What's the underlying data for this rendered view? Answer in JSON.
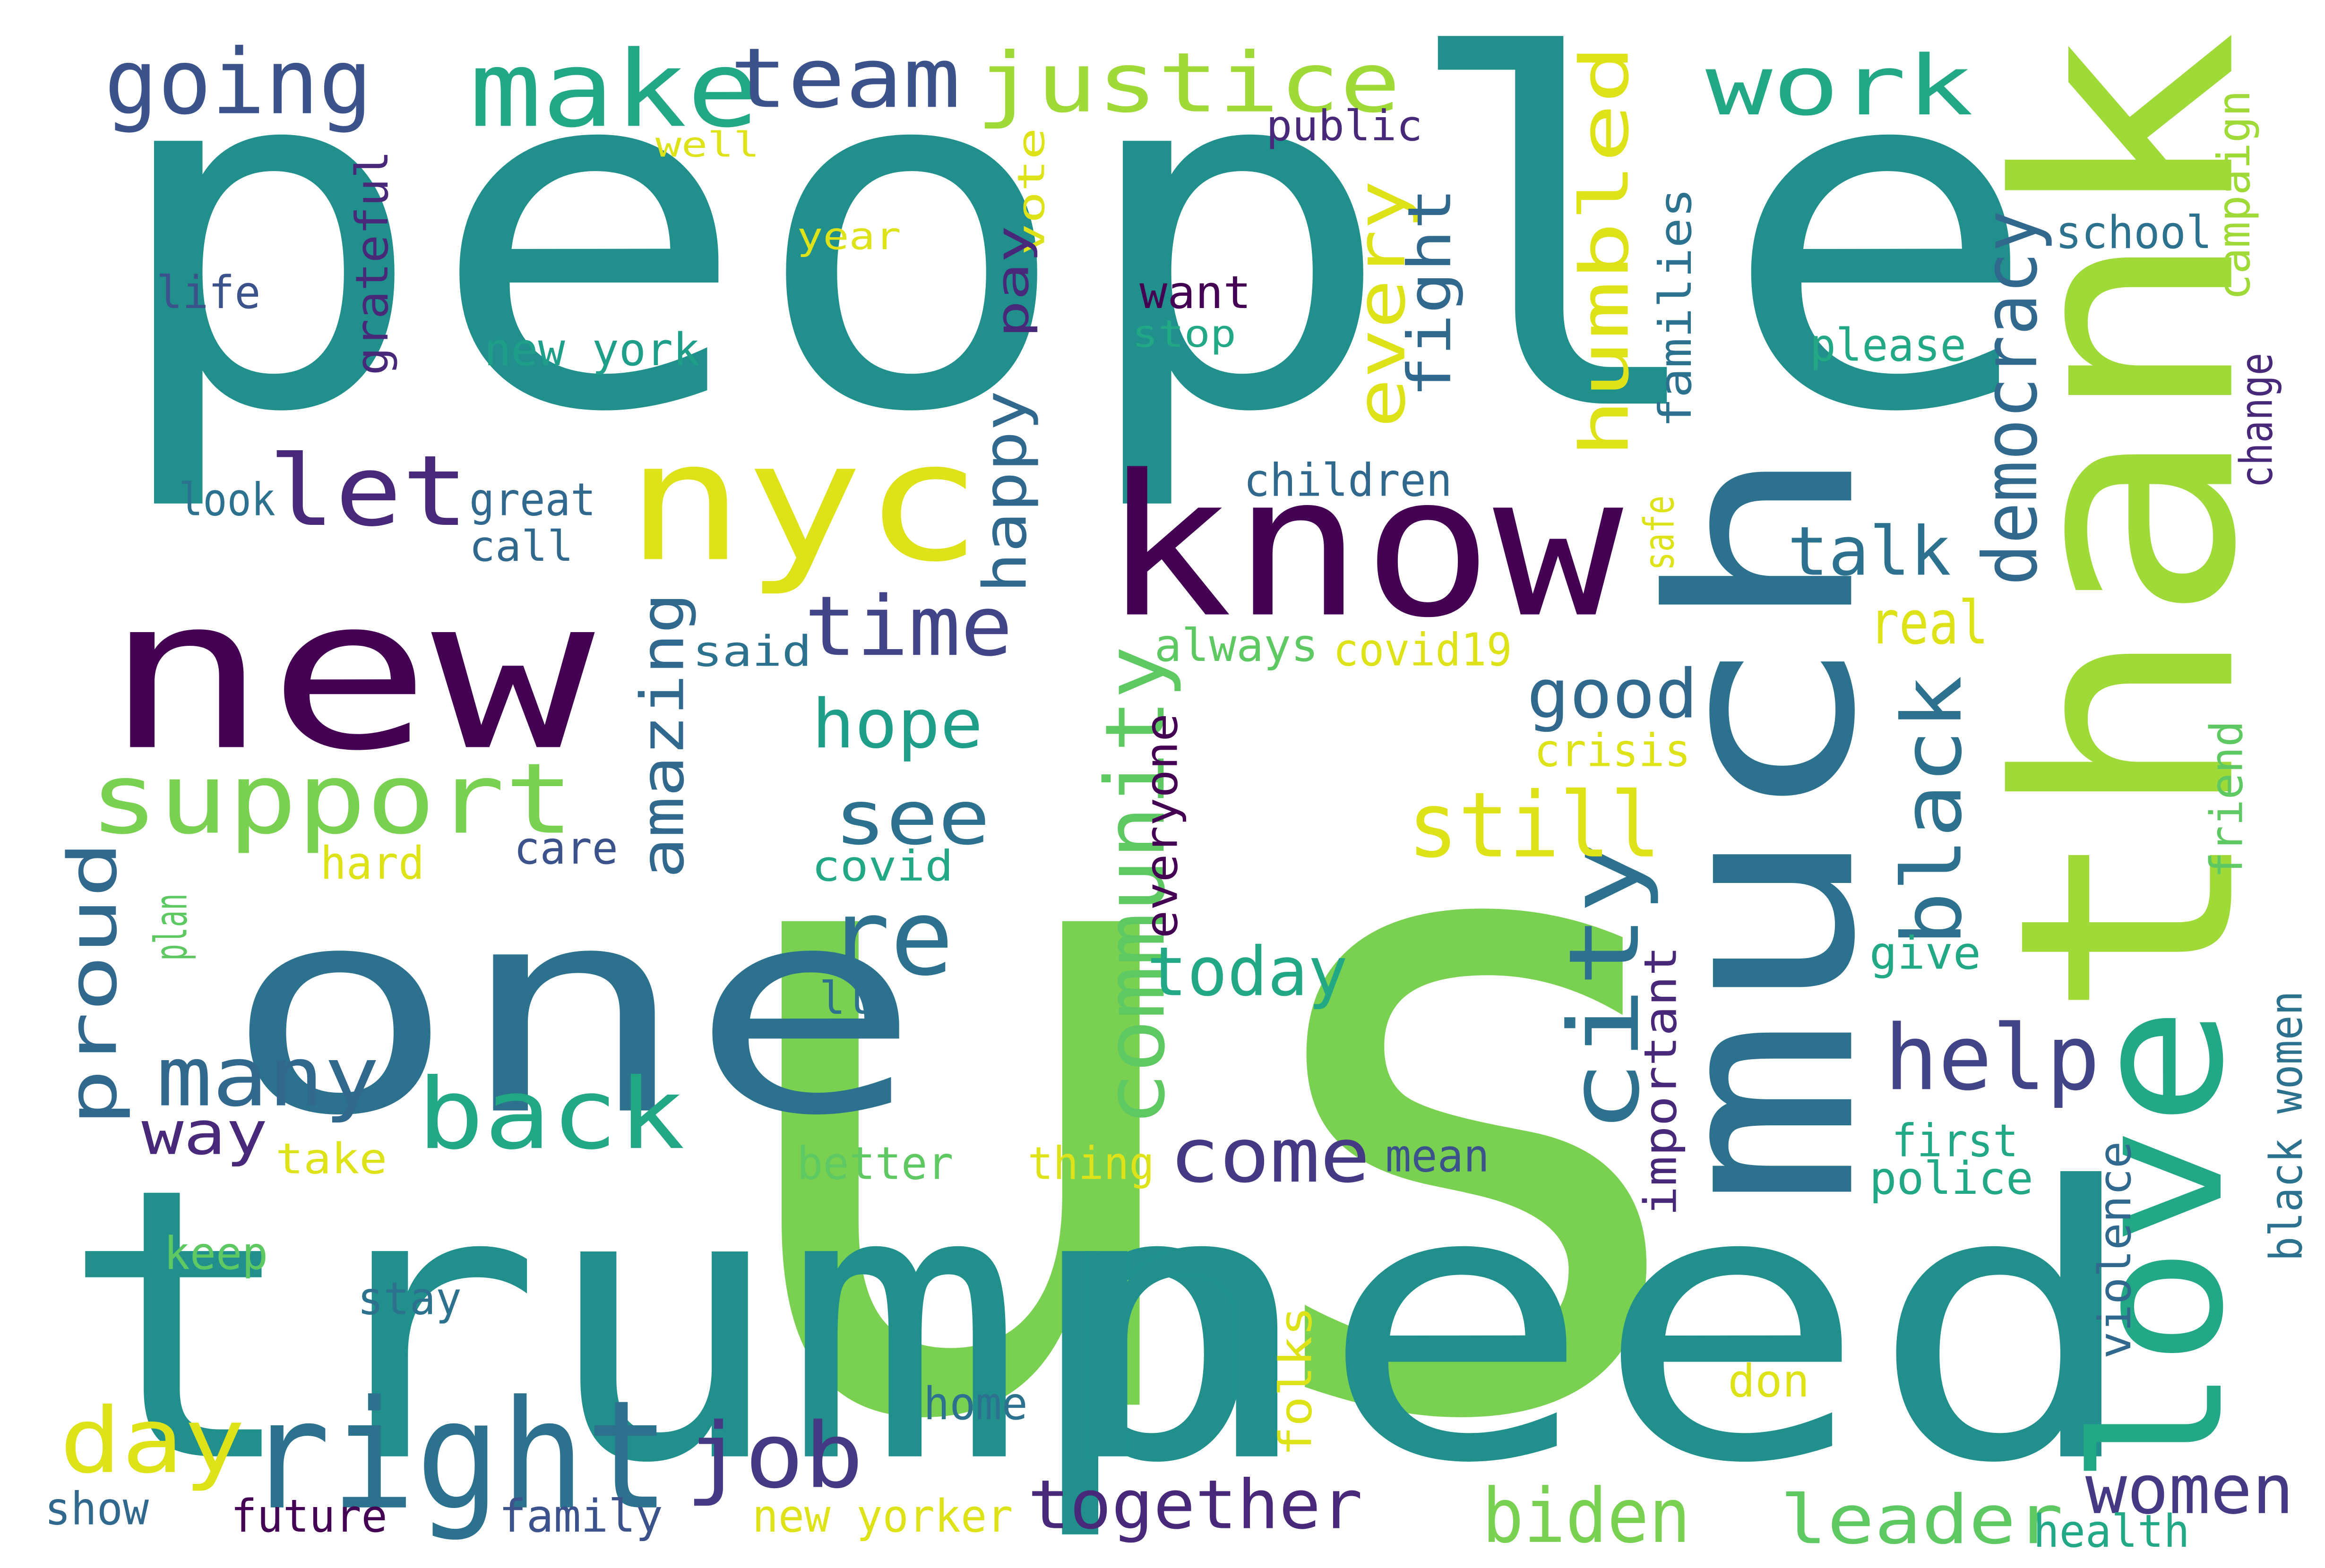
{
  "words": [
    {
      "text": "people",
      "color": "#21908d"
    },
    {
      "text": "us",
      "color": "#7ad151"
    },
    {
      "text": "trump",
      "color": "#21908d"
    },
    {
      "text": "need",
      "color": "#21908d"
    },
    {
      "text": "new",
      "color": "#440154"
    },
    {
      "text": "one",
      "color": "#2c728e"
    },
    {
      "text": "much",
      "color": "#2c728e"
    },
    {
      "text": "thank",
      "color": "#a0da39"
    },
    {
      "text": "love",
      "color": "#22a884"
    },
    {
      "text": "know",
      "color": "#440154"
    },
    {
      "text": "nyc",
      "color": "#dde318"
    },
    {
      "text": "make",
      "color": "#22a884"
    },
    {
      "text": "team",
      "color": "#3b528b"
    },
    {
      "text": "justice",
      "color": "#a0da39"
    },
    {
      "text": "work",
      "color": "#22a884"
    },
    {
      "text": "going",
      "color": "#3b528b"
    },
    {
      "text": "let",
      "color": "#482878"
    },
    {
      "text": "support",
      "color": "#7ad151"
    },
    {
      "text": "day",
      "color": "#dde318"
    },
    {
      "text": "right",
      "color": "#2c728e"
    },
    {
      "text": "job",
      "color": "#443983"
    },
    {
      "text": "back",
      "color": "#22a884"
    },
    {
      "text": "many",
      "color": "#31688e"
    },
    {
      "text": "way",
      "color": "#482878"
    },
    {
      "text": "city",
      "color": "#2c728e"
    },
    {
      "text": "humbled",
      "color": "#dde318"
    },
    {
      "text": "community",
      "color": "#5ec962"
    },
    {
      "text": "still",
      "color": "#dde318"
    },
    {
      "text": "time",
      "color": "#414487"
    },
    {
      "text": "see",
      "color": "#2c728e"
    },
    {
      "text": "re",
      "color": "#2c728e"
    },
    {
      "text": "hope",
      "color": "#1f9e89"
    },
    {
      "text": "come",
      "color": "#443983"
    },
    {
      "text": "today",
      "color": "#22a884"
    },
    {
      "text": "together",
      "color": "#482878"
    },
    {
      "text": "biden",
      "color": "#7ad151"
    },
    {
      "text": "leader",
      "color": "#5ec962"
    },
    {
      "text": "women",
      "color": "#443983"
    },
    {
      "text": "help",
      "color": "#414487"
    },
    {
      "text": "black",
      "color": "#2c728e"
    },
    {
      "text": "talk",
      "color": "#2c728e"
    },
    {
      "text": "real",
      "color": "#dde318"
    },
    {
      "text": "good",
      "color": "#31688e"
    },
    {
      "text": "democracy",
      "color": "#31688e"
    },
    {
      "text": "proud",
      "color": "#31688e"
    },
    {
      "text": "amazing",
      "color": "#31688e"
    },
    {
      "text": "happy",
      "color": "#31688e"
    },
    {
      "text": "every",
      "color": "#dde318"
    },
    {
      "text": "fight",
      "color": "#31688e"
    },
    {
      "text": "public",
      "color": "#482878"
    },
    {
      "text": "well",
      "color": "#dde318"
    },
    {
      "text": "year",
      "color": "#dde318"
    },
    {
      "text": "vote",
      "color": "#dde318"
    },
    {
      "text": "pay",
      "color": "#482878"
    },
    {
      "text": "want",
      "color": "#440154"
    },
    {
      "text": "stop",
      "color": "#22a884"
    },
    {
      "text": "new york",
      "color": "#1f9e89"
    },
    {
      "text": "life",
      "color": "#3b528b"
    },
    {
      "text": "grateful",
      "color": "#482878"
    },
    {
      "text": "look",
      "color": "#2c728e"
    },
    {
      "text": "great",
      "color": "#31688e"
    },
    {
      "text": "call",
      "color": "#31688e"
    },
    {
      "text": "children",
      "color": "#31688e"
    },
    {
      "text": "always",
      "color": "#5ec962"
    },
    {
      "text": "covid19",
      "color": "#dde318"
    },
    {
      "text": "said",
      "color": "#2c728e"
    },
    {
      "text": "families",
      "color": "#2c728e"
    },
    {
      "text": "safe",
      "color": "#dde318"
    },
    {
      "text": "crisis",
      "color": "#dde318"
    },
    {
      "text": "school",
      "color": "#2c728e"
    },
    {
      "text": "please",
      "color": "#22a884"
    },
    {
      "text": "campaign",
      "color": "#a0da39"
    },
    {
      "text": "change",
      "color": "#482878"
    },
    {
      "text": "care",
      "color": "#3b528b"
    },
    {
      "text": "hard",
      "color": "#dde318"
    },
    {
      "text": "covid",
      "color": "#22a884"
    },
    {
      "text": "plan",
      "color": "#5ec962"
    },
    {
      "text": "everyone",
      "color": "#440154"
    },
    {
      "text": "ll",
      "color": "#2c728e"
    },
    {
      "text": "give",
      "color": "#22a884"
    },
    {
      "text": "friend",
      "color": "#5ec962"
    },
    {
      "text": "important",
      "color": "#482878"
    },
    {
      "text": "black women",
      "color": "#2c728e"
    },
    {
      "text": "first",
      "color": "#22a884"
    },
    {
      "text": "police",
      "color": "#22a884"
    },
    {
      "text": "violence",
      "color": "#31688e"
    },
    {
      "text": "mean",
      "color": "#3b528b"
    },
    {
      "text": "thing",
      "color": "#dde318"
    },
    {
      "text": "better",
      "color": "#5ec962"
    },
    {
      "text": "take",
      "color": "#dde318"
    },
    {
      "text": "keep",
      "color": "#5ec962"
    },
    {
      "text": "stay",
      "color": "#2c728e"
    },
    {
      "text": "home",
      "color": "#2c728e"
    },
    {
      "text": "folks",
      "color": "#dde318"
    },
    {
      "text": "don",
      "color": "#dde318"
    },
    {
      "text": "show",
      "color": "#31688e"
    },
    {
      "text": "future",
      "color": "#440154"
    },
    {
      "text": "family",
      "color": "#3b528b"
    },
    {
      "text": "new yorker",
      "color": "#dde318"
    },
    {
      "text": "health",
      "color": "#22a884"
    }
  ]
}
